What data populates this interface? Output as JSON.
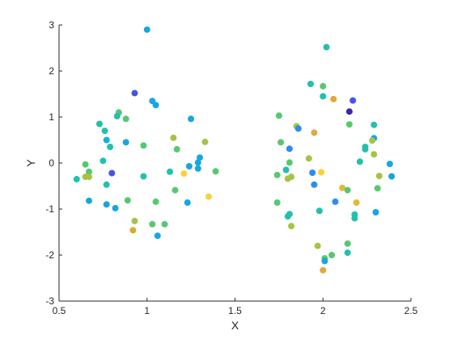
{
  "chart_data": {
    "type": "scatter",
    "title": "",
    "xlabel": "X",
    "ylabel": "Y",
    "xlim": [
      0.5,
      2.5
    ],
    "ylim": [
      -3,
      3
    ],
    "xticks": [
      0.5,
      1,
      1.5,
      2,
      2.5
    ],
    "xtick_labels": [
      "0.5",
      "1",
      "1.5",
      "2",
      "2.5"
    ],
    "yticks": [
      -3,
      -2,
      -1,
      0,
      1,
      2,
      3
    ],
    "ytick_labels": [
      "-3",
      "-2",
      "-1",
      "0",
      "1",
      "2",
      "3"
    ],
    "grid": false,
    "box": false,
    "colormap": "parula",
    "colors": [
      "#3e26a8",
      "#4353f1",
      "#2d8cf0",
      "#13b1da",
      "#23c0ab",
      "#58c870",
      "#a6c346",
      "#e3b83a",
      "#fad13a"
    ],
    "points": [
      {
        "x": 1.0,
        "y": 2.9,
        "c": "#16a6e1"
      },
      {
        "x": 0.93,
        "y": 1.52,
        "c": "#4353f1"
      },
      {
        "x": 1.03,
        "y": 1.35,
        "c": "#16a6e1"
      },
      {
        "x": 1.05,
        "y": 1.26,
        "c": "#16a6e1"
      },
      {
        "x": 0.84,
        "y": 1.1,
        "c": "#58c870"
      },
      {
        "x": 0.83,
        "y": 1.02,
        "c": "#23c0ab"
      },
      {
        "x": 0.88,
        "y": 0.96,
        "c": "#58c870"
      },
      {
        "x": 1.25,
        "y": 0.96,
        "c": "#16a6e1"
      },
      {
        "x": 0.73,
        "y": 0.85,
        "c": "#23c0ab"
      },
      {
        "x": 0.76,
        "y": 0.7,
        "c": "#23c0ab"
      },
      {
        "x": 1.15,
        "y": 0.55,
        "c": "#a6c346"
      },
      {
        "x": 0.77,
        "y": 0.5,
        "c": "#13b1da"
      },
      {
        "x": 0.88,
        "y": 0.45,
        "c": "#16a6e1"
      },
      {
        "x": 1.33,
        "y": 0.46,
        "c": "#a6c346"
      },
      {
        "x": 0.98,
        "y": 0.38,
        "c": "#58c870"
      },
      {
        "x": 0.79,
        "y": 0.35,
        "c": "#23c0ab"
      },
      {
        "x": 1.17,
        "y": 0.3,
        "c": "#58c870"
      },
      {
        "x": 1.3,
        "y": 0.12,
        "c": "#16a6e1"
      },
      {
        "x": 0.75,
        "y": 0.05,
        "c": "#23c0ab"
      },
      {
        "x": 1.29,
        "y": 0.01,
        "c": "#16a6e1"
      },
      {
        "x": 0.65,
        "y": -0.03,
        "c": "#58c870"
      },
      {
        "x": 1.24,
        "y": -0.07,
        "c": "#16a6e1"
      },
      {
        "x": 1.29,
        "y": -0.12,
        "c": "#16a6e1"
      },
      {
        "x": 0.67,
        "y": -0.19,
        "c": "#58c870"
      },
      {
        "x": 1.13,
        "y": -0.19,
        "c": "#23c0ab"
      },
      {
        "x": 1.39,
        "y": -0.18,
        "c": "#58c870"
      },
      {
        "x": 0.8,
        "y": -0.22,
        "c": "#4353f1"
      },
      {
        "x": 1.21,
        "y": -0.23,
        "c": "#fad13a"
      },
      {
        "x": 0.98,
        "y": -0.29,
        "c": "#23c0ab"
      },
      {
        "x": 0.65,
        "y": -0.3,
        "c": "#a6c346"
      },
      {
        "x": 0.67,
        "y": -0.3,
        "c": "#a6c346"
      },
      {
        "x": 0.6,
        "y": -0.35,
        "c": "#23c0ab"
      },
      {
        "x": 0.77,
        "y": -0.47,
        "c": "#23c0ab"
      },
      {
        "x": 1.16,
        "y": -0.59,
        "c": "#58c870"
      },
      {
        "x": 1.35,
        "y": -0.73,
        "c": "#fad13a"
      },
      {
        "x": 0.67,
        "y": -0.82,
        "c": "#16a6e1"
      },
      {
        "x": 0.89,
        "y": -0.81,
        "c": "#58c870"
      },
      {
        "x": 1.05,
        "y": -0.84,
        "c": "#58c870"
      },
      {
        "x": 1.23,
        "y": -0.86,
        "c": "#16a6e1"
      },
      {
        "x": 0.77,
        "y": -0.9,
        "c": "#16a6e1"
      },
      {
        "x": 0.82,
        "y": -0.98,
        "c": "#16a6e1"
      },
      {
        "x": 0.93,
        "y": -1.26,
        "c": "#a6c346"
      },
      {
        "x": 1.03,
        "y": -1.33,
        "c": "#58c870"
      },
      {
        "x": 1.1,
        "y": -1.33,
        "c": "#58c870"
      },
      {
        "x": 0.92,
        "y": -1.46,
        "c": "#d8ac2c"
      },
      {
        "x": 1.06,
        "y": -1.58,
        "c": "#16a6e1"
      },
      {
        "x": 2.02,
        "y": 2.52,
        "c": "#23c0ab"
      },
      {
        "x": 1.93,
        "y": 1.72,
        "c": "#23c0ab"
      },
      {
        "x": 2.0,
        "y": 1.67,
        "c": "#58c870"
      },
      {
        "x": 2.0,
        "y": 1.45,
        "c": "#23c0ab"
      },
      {
        "x": 2.06,
        "y": 1.39,
        "c": "#e3a837"
      },
      {
        "x": 2.17,
        "y": 1.36,
        "c": "#4353f1"
      },
      {
        "x": 2.15,
        "y": 1.12,
        "c": "#3e26a8"
      },
      {
        "x": 1.75,
        "y": 1.03,
        "c": "#58c870"
      },
      {
        "x": 2.15,
        "y": 0.84,
        "c": "#58c870"
      },
      {
        "x": 2.29,
        "y": 0.83,
        "c": "#23c0ab"
      },
      {
        "x": 1.85,
        "y": 0.8,
        "c": "#a6c346"
      },
      {
        "x": 1.86,
        "y": 0.75,
        "c": "#2d8cf0"
      },
      {
        "x": 1.95,
        "y": 0.66,
        "c": "#e3a837"
      },
      {
        "x": 2.29,
        "y": 0.54,
        "c": "#16a6e1"
      },
      {
        "x": 2.28,
        "y": 0.49,
        "c": "#a6c346"
      },
      {
        "x": 1.76,
        "y": 0.45,
        "c": "#58c870"
      },
      {
        "x": 2.24,
        "y": 0.35,
        "c": "#23c0ab"
      },
      {
        "x": 2.24,
        "y": 0.3,
        "c": "#23c0ab"
      },
      {
        "x": 1.81,
        "y": 0.31,
        "c": "#2d8cf0"
      },
      {
        "x": 2.29,
        "y": 0.19,
        "c": "#a6c346"
      },
      {
        "x": 1.92,
        "y": 0.1,
        "c": "#a6c346"
      },
      {
        "x": 2.21,
        "y": 0.03,
        "c": "#23c0ab"
      },
      {
        "x": 1.81,
        "y": 0.01,
        "c": "#58c870"
      },
      {
        "x": 2.38,
        "y": -0.02,
        "c": "#16a6e1"
      },
      {
        "x": 1.79,
        "y": -0.15,
        "c": "#23c0ab"
      },
      {
        "x": 1.94,
        "y": -0.21,
        "c": "#2d8cf0"
      },
      {
        "x": 1.99,
        "y": -0.2,
        "c": "#fad13a"
      },
      {
        "x": 2.32,
        "y": -0.28,
        "c": "#a6c346"
      },
      {
        "x": 2.39,
        "y": -0.29,
        "c": "#16a6e1"
      },
      {
        "x": 1.74,
        "y": -0.26,
        "c": "#58c870"
      },
      {
        "x": 1.82,
        "y": -0.3,
        "c": "#a6c346"
      },
      {
        "x": 1.8,
        "y": -0.34,
        "c": "#a6c346"
      },
      {
        "x": 1.95,
        "y": -0.47,
        "c": "#2d8cf0"
      },
      {
        "x": 2.11,
        "y": -0.54,
        "c": "#e3b83a"
      },
      {
        "x": 2.31,
        "y": -0.55,
        "c": "#58c870"
      },
      {
        "x": 2.14,
        "y": -0.59,
        "c": "#58c870"
      },
      {
        "x": 2.07,
        "y": -0.84,
        "c": "#2d8cf0"
      },
      {
        "x": 2.19,
        "y": -0.86,
        "c": "#e3b83a"
      },
      {
        "x": 1.74,
        "y": -0.86,
        "c": "#58c870"
      },
      {
        "x": 1.98,
        "y": -1.04,
        "c": "#23c0ab"
      },
      {
        "x": 2.3,
        "y": -1.07,
        "c": "#16a6e1"
      },
      {
        "x": 1.81,
        "y": -1.11,
        "c": "#23c0ab"
      },
      {
        "x": 1.8,
        "y": -1.16,
        "c": "#23c0ab"
      },
      {
        "x": 2.18,
        "y": -1.12,
        "c": "#23c0ab"
      },
      {
        "x": 2.18,
        "y": -1.2,
        "c": "#23c0ab"
      },
      {
        "x": 1.82,
        "y": -1.37,
        "c": "#a6c346"
      },
      {
        "x": 2.14,
        "y": -1.75,
        "c": "#58c870"
      },
      {
        "x": 1.97,
        "y": -1.8,
        "c": "#a6c346"
      },
      {
        "x": 2.14,
        "y": -1.95,
        "c": "#23c0ab"
      },
      {
        "x": 2.05,
        "y": -2.0,
        "c": "#58c870"
      },
      {
        "x": 2.01,
        "y": -2.07,
        "c": "#58c870"
      },
      {
        "x": 2.01,
        "y": -2.13,
        "c": "#16a6e1"
      },
      {
        "x": 2.0,
        "y": -2.33,
        "c": "#e3a837"
      }
    ]
  }
}
